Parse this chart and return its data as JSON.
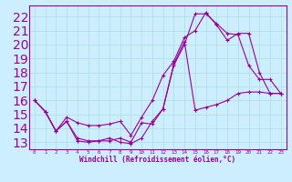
{
  "xlabel": "Windchill (Refroidissement éolien,°C)",
  "bg_color": "#cceeff",
  "line_color": "#990099",
  "grid_color": "#aadddd",
  "xlim": [
    -0.5,
    23.5
  ],
  "ylim": [
    12.5,
    22.8
  ],
  "xticks": [
    0,
    1,
    2,
    3,
    4,
    5,
    6,
    7,
    8,
    9,
    10,
    11,
    12,
    13,
    14,
    15,
    16,
    17,
    18,
    19,
    20,
    21,
    22,
    23
  ],
  "yticks": [
    13,
    14,
    15,
    16,
    17,
    18,
    19,
    20,
    21,
    22
  ],
  "line1_x": [
    0,
    1,
    2,
    3,
    4,
    5,
    6,
    7,
    8,
    9,
    10,
    11,
    12,
    13,
    14,
    15,
    16,
    17,
    18,
    19,
    20,
    21,
    22,
    23
  ],
  "line1_y": [
    16.0,
    15.2,
    13.8,
    14.5,
    13.1,
    13.0,
    13.1,
    13.1,
    13.3,
    13.0,
    14.4,
    14.3,
    15.4,
    18.5,
    20.0,
    22.2,
    22.2,
    21.5,
    20.8,
    20.7,
    18.5,
    17.5,
    17.5,
    16.5
  ],
  "line2_x": [
    0,
    1,
    2,
    3,
    4,
    5,
    6,
    7,
    8,
    9,
    10,
    11,
    12,
    13,
    14,
    15,
    16,
    17,
    18,
    19,
    20,
    21,
    22,
    23
  ],
  "line2_y": [
    16.0,
    15.2,
    13.8,
    14.8,
    14.4,
    14.2,
    14.2,
    14.3,
    14.5,
    13.5,
    14.8,
    16.0,
    17.8,
    18.8,
    20.5,
    21.0,
    22.3,
    21.4,
    20.3,
    20.8,
    20.8,
    18.0,
    16.5,
    16.5
  ],
  "line3_x": [
    0,
    1,
    2,
    3,
    4,
    5,
    6,
    7,
    8,
    9,
    10,
    11,
    12,
    13,
    14,
    15,
    16,
    17,
    18,
    19,
    20,
    21,
    22,
    23
  ],
  "line3_y": [
    16.0,
    15.2,
    13.8,
    14.5,
    13.3,
    13.1,
    13.1,
    13.3,
    13.0,
    12.9,
    13.3,
    14.5,
    15.4,
    18.6,
    20.2,
    15.3,
    15.5,
    15.7,
    16.0,
    16.5,
    16.6,
    16.6,
    16.5,
    16.5
  ]
}
